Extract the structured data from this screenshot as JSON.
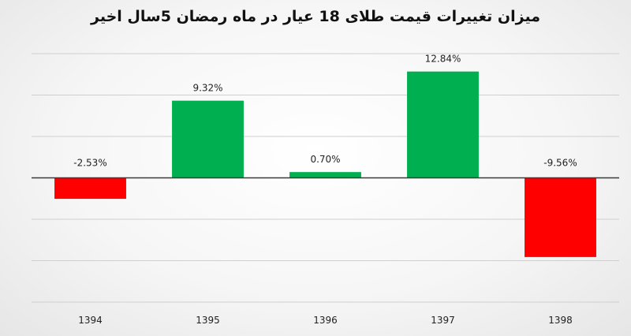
{
  "chart_data": {
    "type": "bar",
    "title": "میزان تغییرات قیمت طلای 18 عیار در ماه رمضان 5سال اخیر",
    "categories": [
      "1394",
      "1395",
      "1396",
      "1397",
      "1398"
    ],
    "values": [
      -2.53,
      9.32,
      0.7,
      12.84,
      -9.56
    ],
    "data_labels": [
      "-2.53%",
      "9.32%",
      "0.70%",
      "12.84%",
      "-9.56%"
    ],
    "xlabel": "",
    "ylabel": "",
    "ylim": [
      -15,
      15
    ],
    "grid": true,
    "legend": "none",
    "colors": {
      "positive": "#00b050",
      "negative": "#ff0000"
    }
  }
}
